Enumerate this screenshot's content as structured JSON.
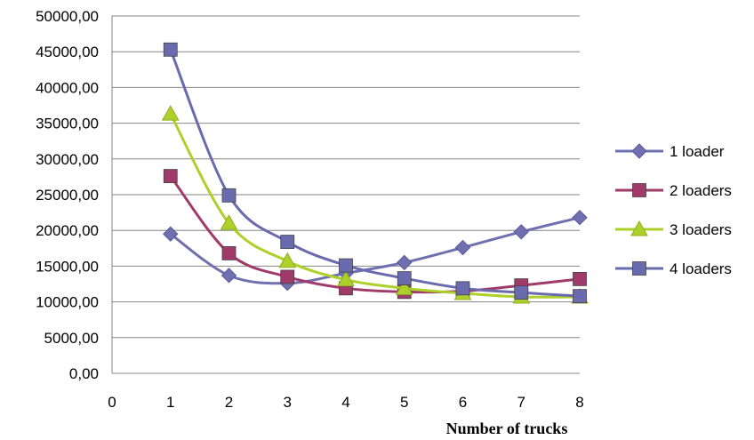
{
  "chart_data": {
    "type": "line",
    "title": "",
    "xlabel": "Number of trucks",
    "ylabel": "",
    "xlim": [
      0,
      8
    ],
    "ylim": [
      0,
      50000
    ],
    "x_ticks": [
      "0",
      "1",
      "2",
      "3",
      "4",
      "5",
      "6",
      "7",
      "8"
    ],
    "y_ticks": [
      "0,00",
      "5000,00",
      "10000,00",
      "15000,00",
      "20000,00",
      "25000,00",
      "30000,00",
      "35000,00",
      "40000,00",
      "45000,00",
      "50000,00"
    ],
    "grid": "horizontal",
    "legend_position": "right",
    "x": [
      1,
      2,
      3,
      4,
      5,
      6,
      7,
      8
    ],
    "series": [
      {
        "name": "1 loader",
        "color": "#7070B0",
        "marker": "diamond",
        "values": [
          19500,
          13700,
          12600,
          14000,
          15500,
          17600,
          19800,
          21800
        ]
      },
      {
        "name": "2 loaders",
        "color": "#A03A6A",
        "marker": "square",
        "values": [
          27600,
          16800,
          13500,
          11900,
          11400,
          11500,
          12300,
          13200
        ]
      },
      {
        "name": "3 loaders",
        "color": "#AED02A",
        "marker": "triangle",
        "values": [
          36300,
          21000,
          15700,
          13100,
          11900,
          11200,
          10700,
          10700
        ]
      },
      {
        "name": "4 loaders",
        "color": "#6A6AAE",
        "marker": "square",
        "values": [
          45300,
          24900,
          18400,
          15100,
          13300,
          11900,
          11300,
          10800
        ]
      }
    ]
  }
}
